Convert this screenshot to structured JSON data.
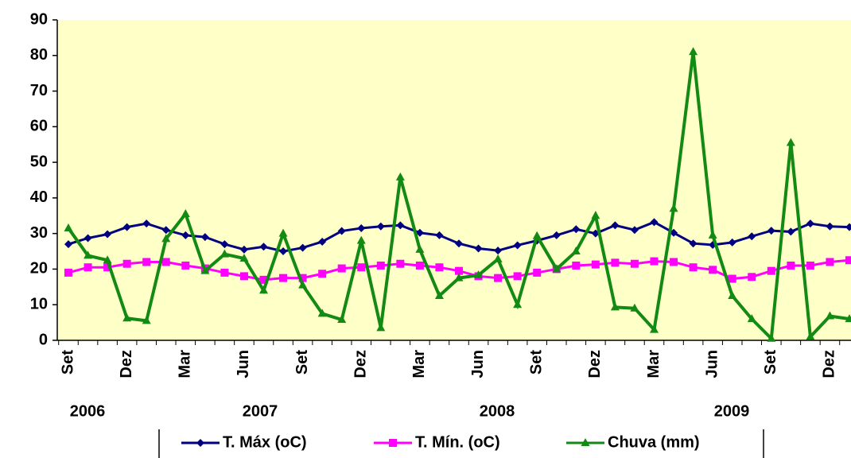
{
  "chart_data": {
    "type": "line",
    "categories": [
      "Set",
      null,
      null,
      "Dez",
      null,
      null,
      "Mar",
      null,
      null,
      "Jun",
      null,
      null,
      "Set",
      null,
      null,
      "Dez",
      null,
      null,
      "Mar",
      null,
      null,
      "Jun",
      null,
      null,
      "Set",
      null,
      null,
      "Dez",
      null,
      null,
      "Mar",
      null,
      null,
      "Jun",
      null,
      null,
      "Set",
      null,
      null,
      "Dez",
      null
    ],
    "x_group_labels": [
      "2006",
      "2007",
      "2008",
      "2009"
    ],
    "series": [
      {
        "name": "T. Máx (oC)",
        "color": "#000080",
        "marker": "diamond",
        "values": [
          27,
          28.7,
          29.8,
          31.8,
          32.8,
          31,
          29.5,
          29,
          27,
          25.5,
          26.3,
          25,
          26,
          27.7,
          30.7,
          31.5,
          32,
          32.3,
          30.2,
          29.5,
          27.2,
          25.8,
          25.2,
          26.7,
          28,
          29.5,
          31.2,
          30,
          32.3,
          31,
          33.2,
          30.2,
          27.2,
          26.8,
          27.5,
          29.2,
          30.8,
          30.5,
          32.8,
          32,
          31.8
        ]
      },
      {
        "name": "T. Mín. (oC)",
        "color": "#ff00ff",
        "marker": "square",
        "values": [
          19,
          20.5,
          20.5,
          21.5,
          22,
          22,
          21,
          20.2,
          19,
          18,
          17,
          17.5,
          17.5,
          18.7,
          20.2,
          20.5,
          21,
          21.5,
          21,
          20.5,
          19.5,
          18,
          17.5,
          18,
          19,
          20,
          21,
          21.3,
          21.8,
          21.5,
          22.2,
          22,
          20.5,
          19.8,
          17.3,
          17.8,
          19.5,
          21,
          21,
          22,
          22.5
        ]
      },
      {
        "name": "Chuva (mm)",
        "color": "#138a13",
        "marker": "triangle",
        "values": [
          31.5,
          23.8,
          22.5,
          6.2,
          5.5,
          28.5,
          35.5,
          19.5,
          24.2,
          23,
          14,
          30,
          15.5,
          7.5,
          5.8,
          28,
          3.5,
          45.8,
          25.5,
          12.5,
          17.5,
          18.3,
          22.8,
          10,
          29.3,
          20,
          25,
          35,
          9.3,
          9,
          3,
          37,
          81,
          29.5,
          12.5,
          6,
          0.5,
          55.5,
          1,
          6.8,
          6
        ]
      }
    ],
    "ylim": [
      0,
      90
    ],
    "yticks": [
      0,
      10,
      20,
      30,
      40,
      50,
      60,
      70,
      80,
      90
    ],
    "grid": false,
    "legend": "bottom",
    "plot_background": "#ffffc8"
  }
}
